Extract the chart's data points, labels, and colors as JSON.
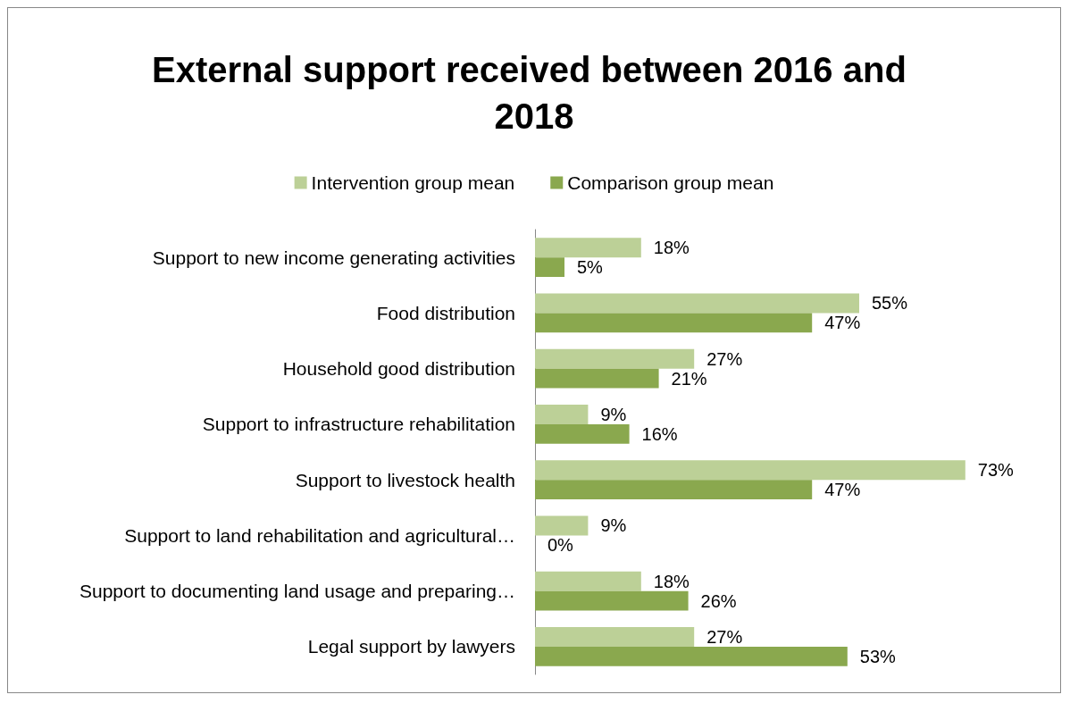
{
  "chart_data": {
    "type": "bar",
    "orientation": "horizontal",
    "title": "External support received between 2016 and 2018",
    "categories": [
      "Support to new income generating activities",
      "Food distribution",
      "Household good distribution",
      "Support to infrastructure rehabilitation",
      "Support to livestock health",
      "Support to land rehabilitation and agricultural…",
      "Support to documenting land usage and preparing…",
      "Legal support by lawyers"
    ],
    "series": [
      {
        "name": "Intervention group mean",
        "color": "#bcd097",
        "values": [
          18,
          55,
          27,
          9,
          73,
          9,
          18,
          27
        ],
        "value_labels": [
          "18%",
          "55%",
          "27%",
          "9%",
          "73%",
          "9%",
          "18%",
          "27%"
        ]
      },
      {
        "name": "Comparison group mean",
        "color": "#8aa84e",
        "values": [
          5,
          47,
          21,
          16,
          47,
          0,
          26,
          53
        ],
        "value_labels": [
          "5%",
          "47%",
          "21%",
          "16%",
          "47%",
          "0%",
          "26%",
          "53%"
        ]
      }
    ],
    "legend": "top",
    "grid": false
  }
}
